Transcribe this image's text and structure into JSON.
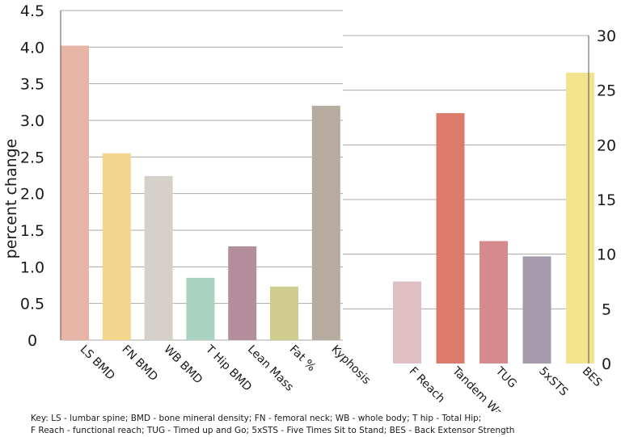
{
  "chart_data": [
    {
      "type": "bar",
      "ylabel": "percent change",
      "ylim": [
        0,
        4.5
      ],
      "yticks": [
        "0",
        "0.5",
        "1.0",
        "1.5",
        "2.0",
        "2.5",
        "3.0",
        "3.5",
        "4.0",
        "4.5"
      ],
      "grid": true,
      "categories": [
        "LS BMD",
        "FN BMD",
        "WB BMD",
        "T Hip BMD",
        "Lean Mass",
        "Fat %",
        "Kyphosis"
      ],
      "values": [
        4.02,
        2.55,
        2.24,
        0.85,
        1.28,
        0.73,
        3.2
      ],
      "colors": [
        "#e6b5a5",
        "#f3d68c",
        "#d5d0c9",
        "#a9d3c0",
        "#b48e9c",
        "#cfcc8e",
        "#b6ab9e"
      ]
    },
    {
      "type": "bar",
      "ylim": [
        0,
        30
      ],
      "yticks": [
        "0",
        "5",
        "10",
        "15",
        "20",
        "25",
        "30"
      ],
      "grid": true,
      "categories": [
        "F Reach",
        "Tandem Walk",
        "TUG",
        "5xSTS",
        "BES"
      ],
      "values": [
        7.5,
        22.9,
        11.2,
        9.8,
        26.6
      ],
      "colors": [
        "#e0c0c4",
        "#dc7b6b",
        "#d68a8e",
        "#a69bac",
        "#f2e38c"
      ]
    }
  ],
  "key": {
    "line1": "Key:  LS - lumbar spine; BMD - bone mineral density; FN - femoral neck; WB - whole body; T hip - Total Hip;",
    "line2": "F Reach - functional reach; TUG - Timed up and Go; 5xSTS - Five Times Sit to Stand; BES - Back Extensor Strength"
  }
}
